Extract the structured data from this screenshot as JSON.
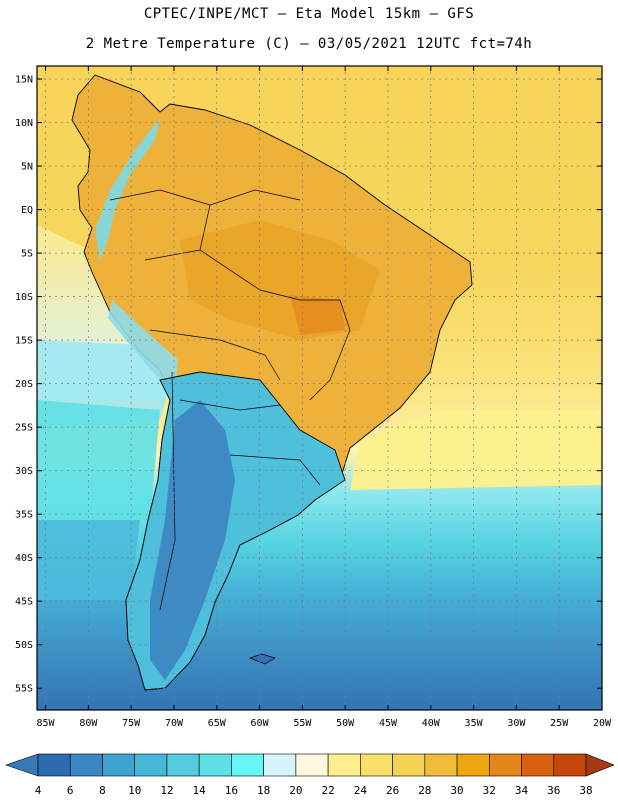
{
  "header": {
    "line1": "CPTEC/INPE/MCT –  Eta Model 15km – GFS",
    "line2": "2 Metre Temperature (C) – 03/05/2021 12UTC fct=74h"
  },
  "axes": {
    "lat_labels": [
      "15N",
      "10N",
      "5N",
      "EQ",
      "5S",
      "10S",
      "15S",
      "20S",
      "25S",
      "30S",
      "35S",
      "40S",
      "45S",
      "50S",
      "55S"
    ],
    "lon_labels": [
      "85W",
      "80W",
      "75W",
      "70W",
      "65W",
      "60W",
      "55W",
      "50W",
      "45W",
      "40W",
      "35W",
      "30W",
      "25W",
      "20W"
    ]
  },
  "legend": {
    "ticks": [
      "4",
      "6",
      "8",
      "10",
      "12",
      "14",
      "16",
      "18",
      "20",
      "22",
      "24",
      "26",
      "28",
      "30",
      "32",
      "34",
      "36",
      "38"
    ],
    "colors": [
      "#3a79b8",
      "#2e6bb0",
      "#3a87c2",
      "#3fa3cf",
      "#47b7d8",
      "#55ccdd",
      "#5fe0e6",
      "#66f6f6",
      "#d6f5fb",
      "#fdf7de",
      "#fdf08c",
      "#f8e06a",
      "#f4d253",
      "#efbd3a",
      "#eda510",
      "#e3871d",
      "#d8600e",
      "#c44609",
      "#a83a12"
    ]
  },
  "colors": {
    "ocean_warm": "#f5d15a",
    "ocean_mid": "#fde98c",
    "ocean_cool": "#62e2ea",
    "ocean_cold": "#3e93c8",
    "ocean_coldest": "#3374b5",
    "land_hot": "#ebb02c",
    "land_cool": "#52c5dd",
    "land_cold": "#3a6fb3"
  }
}
